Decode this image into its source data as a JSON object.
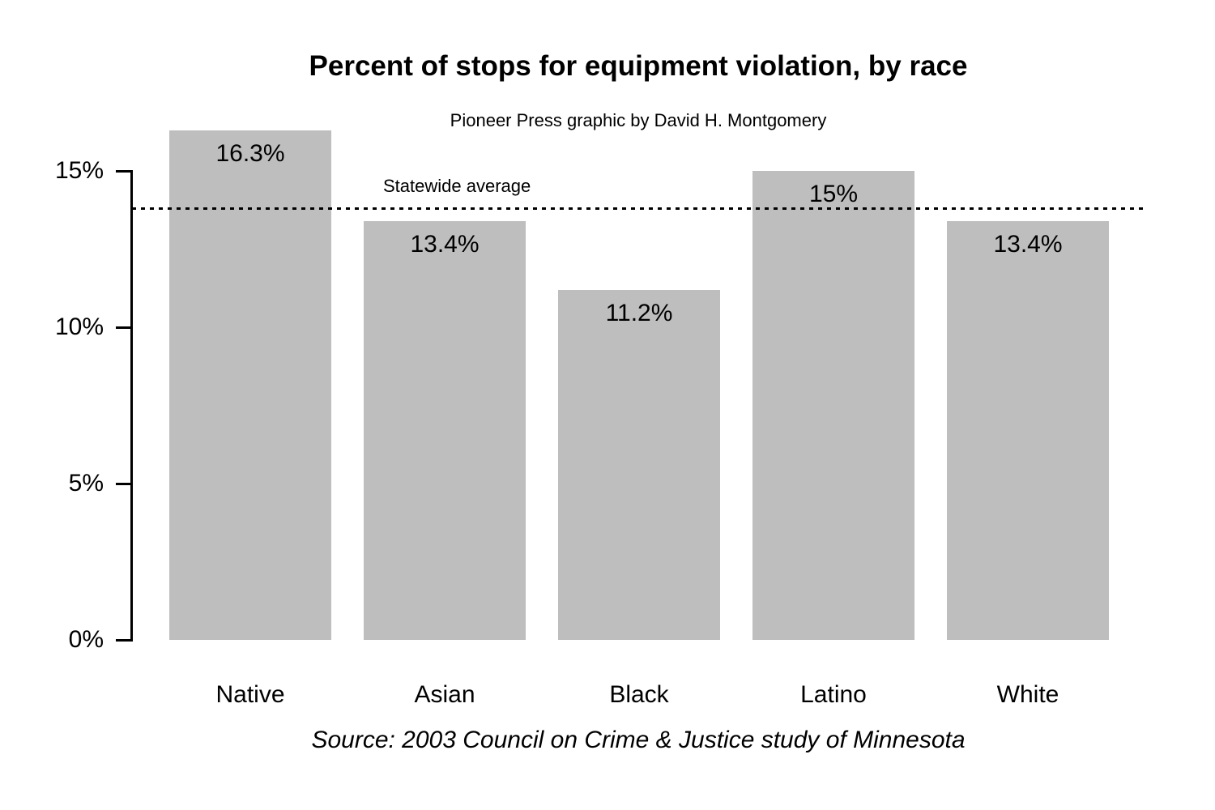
{
  "chart_data": {
    "type": "bar",
    "title": "Percent of stops for equipment violation, by race",
    "subtitle": "Pioneer Press graphic by David H. Montgomery",
    "source": "Source: 2003 Council on Crime & Justice study of Minnesota",
    "categories": [
      "Native",
      "Asian",
      "Black",
      "Latino",
      "White"
    ],
    "values": [
      16.3,
      13.4,
      11.2,
      15,
      13.4
    ],
    "value_labels": [
      "16.3%",
      "13.4%",
      "11.2%",
      "15%",
      "13.4%"
    ],
    "reference_line": {
      "label": "Statewide average",
      "value": 13.8,
      "style": "dotted"
    },
    "y_ticks": [
      {
        "value": 0,
        "label": "0%"
      },
      {
        "value": 5,
        "label": "5%"
      },
      {
        "value": 10,
        "label": "10%"
      },
      {
        "value": 15,
        "label": "15%"
      }
    ],
    "ylim": [
      0,
      16.5
    ],
    "xlabel": "",
    "ylabel": "",
    "grid": false,
    "legend": false,
    "bar_color": "#bebebe",
    "axis_color": "#000000",
    "background_color": "#ffffff"
  }
}
